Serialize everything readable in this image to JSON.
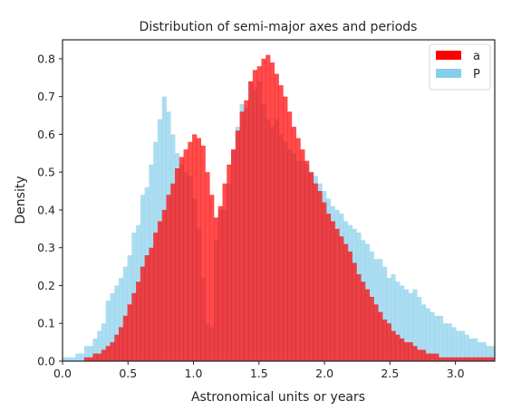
{
  "chart_data": {
    "type": "histogram",
    "title": "Distribution of semi-major axes and periods",
    "xlabel": "Astronomical units or years",
    "ylabel": "Density",
    "xlim": [
      0.0,
      3.3
    ],
    "ylim": [
      0.0,
      0.85
    ],
    "xticks": [
      "0.0",
      "0.5",
      "1.0",
      "1.5",
      "2.0",
      "2.5",
      "3.0"
    ],
    "yticks": [
      "0.0",
      "0.1",
      "0.2",
      "0.3",
      "0.4",
      "0.5",
      "0.6",
      "0.7",
      "0.8"
    ],
    "grid": false,
    "legend_position": "top-right",
    "bin_width": 0.033,
    "series": [
      {
        "name": "P",
        "color": "#87ceeb",
        "alpha": 0.7,
        "values": [
          0.01,
          0.01,
          0.01,
          0.02,
          0.02,
          0.04,
          0.04,
          0.06,
          0.08,
          0.1,
          0.16,
          0.18,
          0.2,
          0.22,
          0.25,
          0.28,
          0.34,
          0.36,
          0.44,
          0.46,
          0.52,
          0.58,
          0.64,
          0.7,
          0.66,
          0.6,
          0.55,
          0.52,
          0.5,
          0.49,
          0.43,
          0.35,
          0.22,
          0.1,
          0.09,
          0.32,
          0.4,
          0.4,
          0.47,
          0.56,
          0.62,
          0.68,
          0.67,
          0.74,
          0.72,
          0.74,
          0.68,
          0.64,
          0.62,
          0.64,
          0.6,
          0.58,
          0.56,
          0.55,
          0.53,
          0.53,
          0.52,
          0.5,
          0.49,
          0.47,
          0.45,
          0.43,
          0.41,
          0.4,
          0.39,
          0.37,
          0.36,
          0.35,
          0.34,
          0.32,
          0.31,
          0.29,
          0.27,
          0.27,
          0.25,
          0.22,
          0.23,
          0.21,
          0.2,
          0.19,
          0.18,
          0.19,
          0.17,
          0.15,
          0.14,
          0.13,
          0.12,
          0.12,
          0.1,
          0.1,
          0.09,
          0.08,
          0.08,
          0.07,
          0.06,
          0.06,
          0.05,
          0.05,
          0.04,
          0.04
        ]
      },
      {
        "name": "a",
        "color": "#ff0000",
        "alpha": 0.7,
        "values": [
          0.0,
          0.0,
          0.0,
          0.0,
          0.0,
          0.01,
          0.01,
          0.02,
          0.02,
          0.03,
          0.04,
          0.05,
          0.07,
          0.09,
          0.12,
          0.15,
          0.18,
          0.21,
          0.25,
          0.28,
          0.3,
          0.34,
          0.37,
          0.4,
          0.44,
          0.47,
          0.51,
          0.54,
          0.56,
          0.58,
          0.6,
          0.59,
          0.57,
          0.5,
          0.44,
          0.38,
          0.41,
          0.47,
          0.52,
          0.56,
          0.61,
          0.66,
          0.69,
          0.74,
          0.77,
          0.78,
          0.8,
          0.81,
          0.79,
          0.76,
          0.73,
          0.7,
          0.66,
          0.62,
          0.59,
          0.56,
          0.53,
          0.5,
          0.47,
          0.45,
          0.42,
          0.39,
          0.37,
          0.35,
          0.33,
          0.31,
          0.29,
          0.26,
          0.23,
          0.21,
          0.19,
          0.17,
          0.15,
          0.13,
          0.11,
          0.1,
          0.08,
          0.07,
          0.06,
          0.05,
          0.05,
          0.04,
          0.03,
          0.03,
          0.02,
          0.02,
          0.02,
          0.01,
          0.01,
          0.01,
          0.01,
          0.01,
          0.01,
          0.01,
          0.01,
          0.01,
          0.01,
          0.01,
          0.01,
          0.01
        ]
      }
    ]
  }
}
